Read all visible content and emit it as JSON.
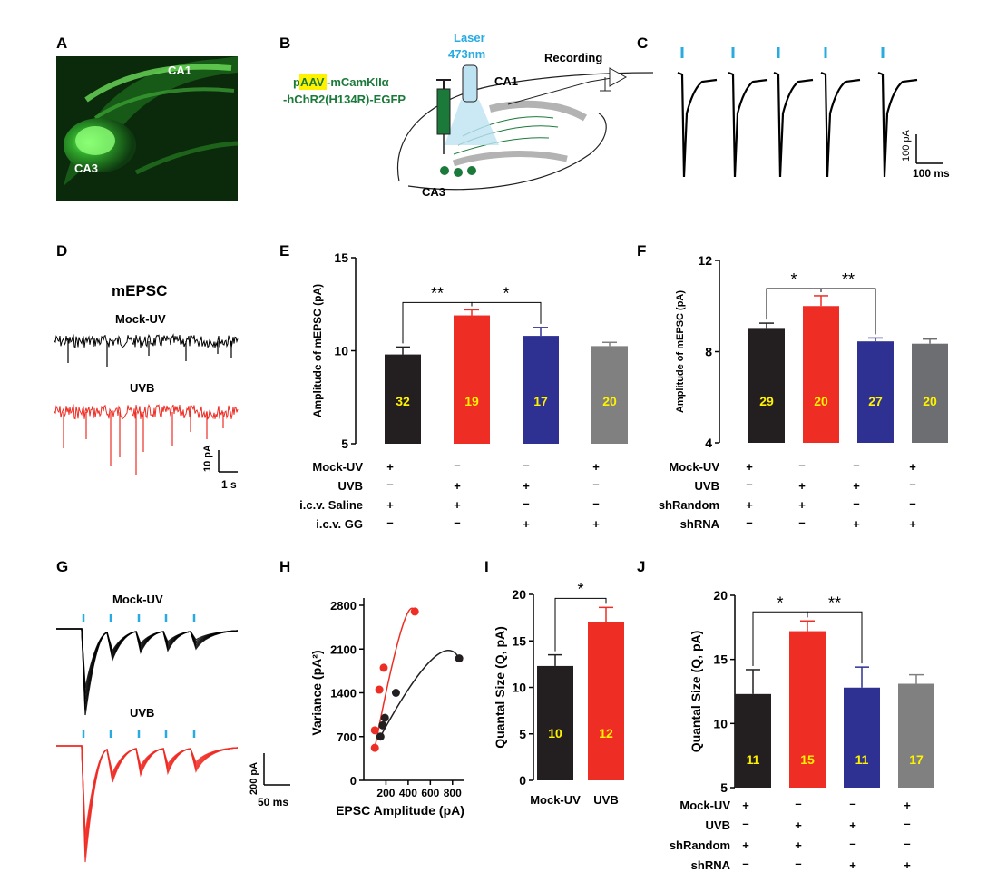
{
  "panels": {
    "A": {
      "label": "A",
      "regions": [
        "CA1",
        "CA3"
      ]
    },
    "B": {
      "label": "B",
      "construct_prefix": "p",
      "construct_highlight": "AAV",
      "construct_line1_rest": "-mCamKIIα",
      "construct_line2": "-hChR2(H134R)-EGFP",
      "laser_line1": "Laser",
      "laser_line2": "473nm",
      "recording": "Recording",
      "ca1": "CA1",
      "ca3": "CA3"
    },
    "C": {
      "label": "C",
      "scale_y": "100 pA",
      "scale_x": "100 ms"
    },
    "D": {
      "label": "D",
      "title": "mEPSC",
      "trace1": "Mock-UV",
      "trace2": "UVB",
      "scale_y": "10 pA",
      "scale_x": "1 s"
    },
    "G": {
      "label": "G",
      "trace1": "Mock-UV",
      "trace2": "UVB",
      "scale_y": "200 pA",
      "scale_x": "50 ms"
    },
    "E": {
      "label": "E"
    },
    "F": {
      "label": "F"
    },
    "H": {
      "label": "H"
    },
    "I": {
      "label": "I"
    },
    "J": {
      "label": "J"
    }
  },
  "conditions_EF_J": {
    "E": [
      {
        "name": "Mock-UV",
        "signs": [
          "+",
          "–",
          "–",
          "+"
        ]
      },
      {
        "name": "UVB",
        "signs": [
          "–",
          "+",
          "+",
          "–"
        ]
      },
      {
        "name": "i.c.v. Saline",
        "signs": [
          "+",
          "+",
          "–",
          "–"
        ]
      },
      {
        "name": "i.c.v. GG",
        "signs": [
          "–",
          "–",
          "+",
          "+"
        ]
      }
    ],
    "F": [
      {
        "name": "Mock-UV",
        "signs": [
          "+",
          "–",
          "–",
          "+"
        ]
      },
      {
        "name": "UVB",
        "signs": [
          "–",
          "+",
          "+",
          "–"
        ]
      },
      {
        "name": "shRandom",
        "signs": [
          "+",
          "+",
          "–",
          "–"
        ]
      },
      {
        "name": "shRNA",
        "signs": [
          "–",
          "–",
          "+",
          "+"
        ]
      }
    ],
    "J": [
      {
        "name": "Mock-UV",
        "signs": [
          "+",
          "–",
          "–",
          "+"
        ]
      },
      {
        "name": "UVB",
        "signs": [
          "–",
          "+",
          "+",
          "–"
        ]
      },
      {
        "name": "shRandom",
        "signs": [
          "+",
          "+",
          "–",
          "–"
        ]
      },
      {
        "name": "shRNA",
        "signs": [
          "–",
          "–",
          "+",
          "+"
        ]
      }
    ]
  },
  "colors": {
    "black": "#231f20",
    "red": "#ee2d24",
    "blue": "#2e3192",
    "gray": "#808080",
    "darkgray": "#6d6e71",
    "yellow": "#fff200",
    "cyan": "#29abe2",
    "green": "#1b7a3a"
  },
  "chart_data": [
    {
      "id": "E",
      "type": "bar",
      "ylabel": "Amplitude of mEPSC (pA)",
      "ylim": [
        5,
        15
      ],
      "yticks": [
        "5",
        "10",
        "15"
      ],
      "values": [
        9.8,
        11.9,
        10.8,
        10.25
      ],
      "errors": [
        0.4,
        0.3,
        0.45,
        0.2
      ],
      "n": [
        "32",
        "19",
        "17",
        "20"
      ],
      "colors": [
        "#231f20",
        "#ee2d24",
        "#2e3192",
        "#808080"
      ],
      "sig": [
        {
          "from": 0,
          "to": 1,
          "text": "**"
        },
        {
          "from": 1,
          "to": 2,
          "text": "*"
        }
      ]
    },
    {
      "id": "F",
      "type": "bar",
      "ylabel": "Amplitude of mEPSC (pA)",
      "ylim": [
        4,
        12
      ],
      "yticks": [
        "4",
        "8",
        "12"
      ],
      "values": [
        9.0,
        10.0,
        8.45,
        8.35
      ],
      "errors": [
        0.25,
        0.45,
        0.15,
        0.2
      ],
      "n": [
        "29",
        "20",
        "27",
        "20"
      ],
      "colors": [
        "#231f20",
        "#ee2d24",
        "#2e3192",
        "#6d6e71"
      ],
      "sig": [
        {
          "from": 0,
          "to": 1,
          "text": "*"
        },
        {
          "from": 1,
          "to": 2,
          "text": "**"
        }
      ]
    },
    {
      "id": "H",
      "type": "scatter",
      "xlabel": "EPSC Amplitude (pA)",
      "ylabel": "Variance (pA²)",
      "xlim": [
        0,
        900
      ],
      "ylim": [
        0,
        2800
      ],
      "xticks": [
        "200",
        "400",
        "600",
        "800"
      ],
      "yticks": [
        "0",
        "700",
        "1400",
        "2100",
        "2800"
      ],
      "series": [
        {
          "color": "#ee2d24",
          "points": [
            [
              100,
              520
            ],
            [
              100,
              800
            ],
            [
              140,
              1450
            ],
            [
              180,
              1800
            ],
            [
              460,
              2700
            ]
          ]
        },
        {
          "color": "#231f20",
          "points": [
            [
              150,
              700
            ],
            [
              170,
              880
            ],
            [
              190,
              1000
            ],
            [
              290,
              1400
            ],
            [
              860,
              1950
            ]
          ]
        }
      ]
    },
    {
      "id": "I",
      "type": "bar",
      "ylabel": "Quantal Size (Q, pA)",
      "ylim": [
        0,
        20
      ],
      "yticks": [
        "0",
        "5",
        "10",
        "15",
        "20"
      ],
      "categories": [
        "Mock-UV",
        "UVB"
      ],
      "values": [
        12.3,
        17.0
      ],
      "errors": [
        1.2,
        1.6
      ],
      "n": [
        "10",
        "12"
      ],
      "colors": [
        "#231f20",
        "#ee2d24"
      ],
      "sig": [
        {
          "from": 0,
          "to": 1,
          "text": "*"
        }
      ]
    },
    {
      "id": "J",
      "type": "bar",
      "ylabel": "Quantal Size (Q, pA)",
      "ylim": [
        5,
        20
      ],
      "yticks": [
        "5",
        "10",
        "15",
        "20"
      ],
      "values": [
        12.3,
        17.2,
        12.8,
        13.1
      ],
      "errors": [
        1.9,
        0.8,
        1.6,
        0.7
      ],
      "n": [
        "11",
        "15",
        "11",
        "17"
      ],
      "colors": [
        "#231f20",
        "#ee2d24",
        "#2e3192",
        "#808080"
      ],
      "sig": [
        {
          "from": 0,
          "to": 1,
          "text": "*"
        },
        {
          "from": 1,
          "to": 2,
          "text": "**"
        }
      ]
    }
  ]
}
